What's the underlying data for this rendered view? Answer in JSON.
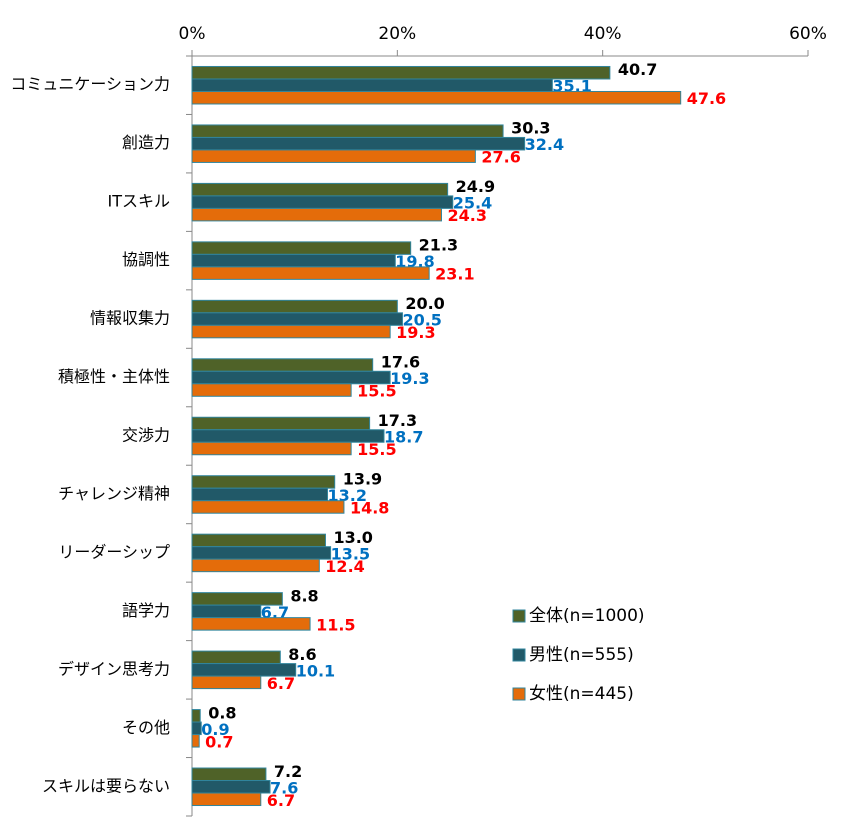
{
  "chart_data": {
    "type": "hbar",
    "categories": [
      "コミュニケーション力",
      "創造力",
      "ITスキル",
      "協調性",
      "情報収集力",
      "積極性・主体性",
      "交渉力",
      "チャレンジ精神",
      "リーダーシップ",
      "語学力",
      "デザイン思考力",
      "その他",
      "スキルは要らない"
    ],
    "series": [
      {
        "name": "全体(n=1000)",
        "color": "#4f6228",
        "label_color": "#000000",
        "values": [
          40.7,
          30.3,
          24.9,
          21.3,
          20.0,
          17.6,
          17.3,
          13.9,
          13.0,
          8.8,
          8.6,
          0.8,
          7.2
        ],
        "value_labels": [
          "40.7",
          "30.3",
          "24.9",
          "21.3",
          "20.0",
          "17.6",
          "17.3",
          "13.9",
          "13.0",
          "8.8",
          "8.6",
          "0.8",
          "7.2"
        ]
      },
      {
        "name": "男性(n=555)",
        "color": "#215968",
        "label_color": "#0070c0",
        "values": [
          35.1,
          32.4,
          25.4,
          19.8,
          20.5,
          19.3,
          18.7,
          13.2,
          13.5,
          6.7,
          10.1,
          0.9,
          7.6
        ],
        "value_labels": [
          "35.1",
          "32.4",
          "25.4",
          "19.8",
          "20.5",
          "19.3",
          "18.7",
          "13.2",
          "13.5",
          "6.7",
          "10.1",
          "0.9",
          "7.6"
        ]
      },
      {
        "name": "女性(n=445)",
        "color": "#e46c0a",
        "label_color": "#ff0000",
        "values": [
          47.6,
          27.6,
          24.3,
          23.1,
          19.3,
          15.5,
          15.5,
          14.8,
          12.4,
          11.5,
          6.7,
          0.7,
          6.7
        ],
        "value_labels": [
          "47.6",
          "27.6",
          "24.3",
          "23.1",
          "19.3",
          "15.5",
          "15.5",
          "14.8",
          "12.4",
          "11.5",
          "6.7",
          "0.7",
          "6.7"
        ]
      }
    ],
    "xlim": [
      0,
      60
    ],
    "xticks": [
      {
        "value": 0,
        "label": "0%"
      },
      {
        "value": 20,
        "label": "20%"
      },
      {
        "value": 40,
        "label": "40%"
      },
      {
        "value": 60,
        "label": "60%"
      }
    ],
    "grid": false,
    "legend": "lower-right"
  }
}
